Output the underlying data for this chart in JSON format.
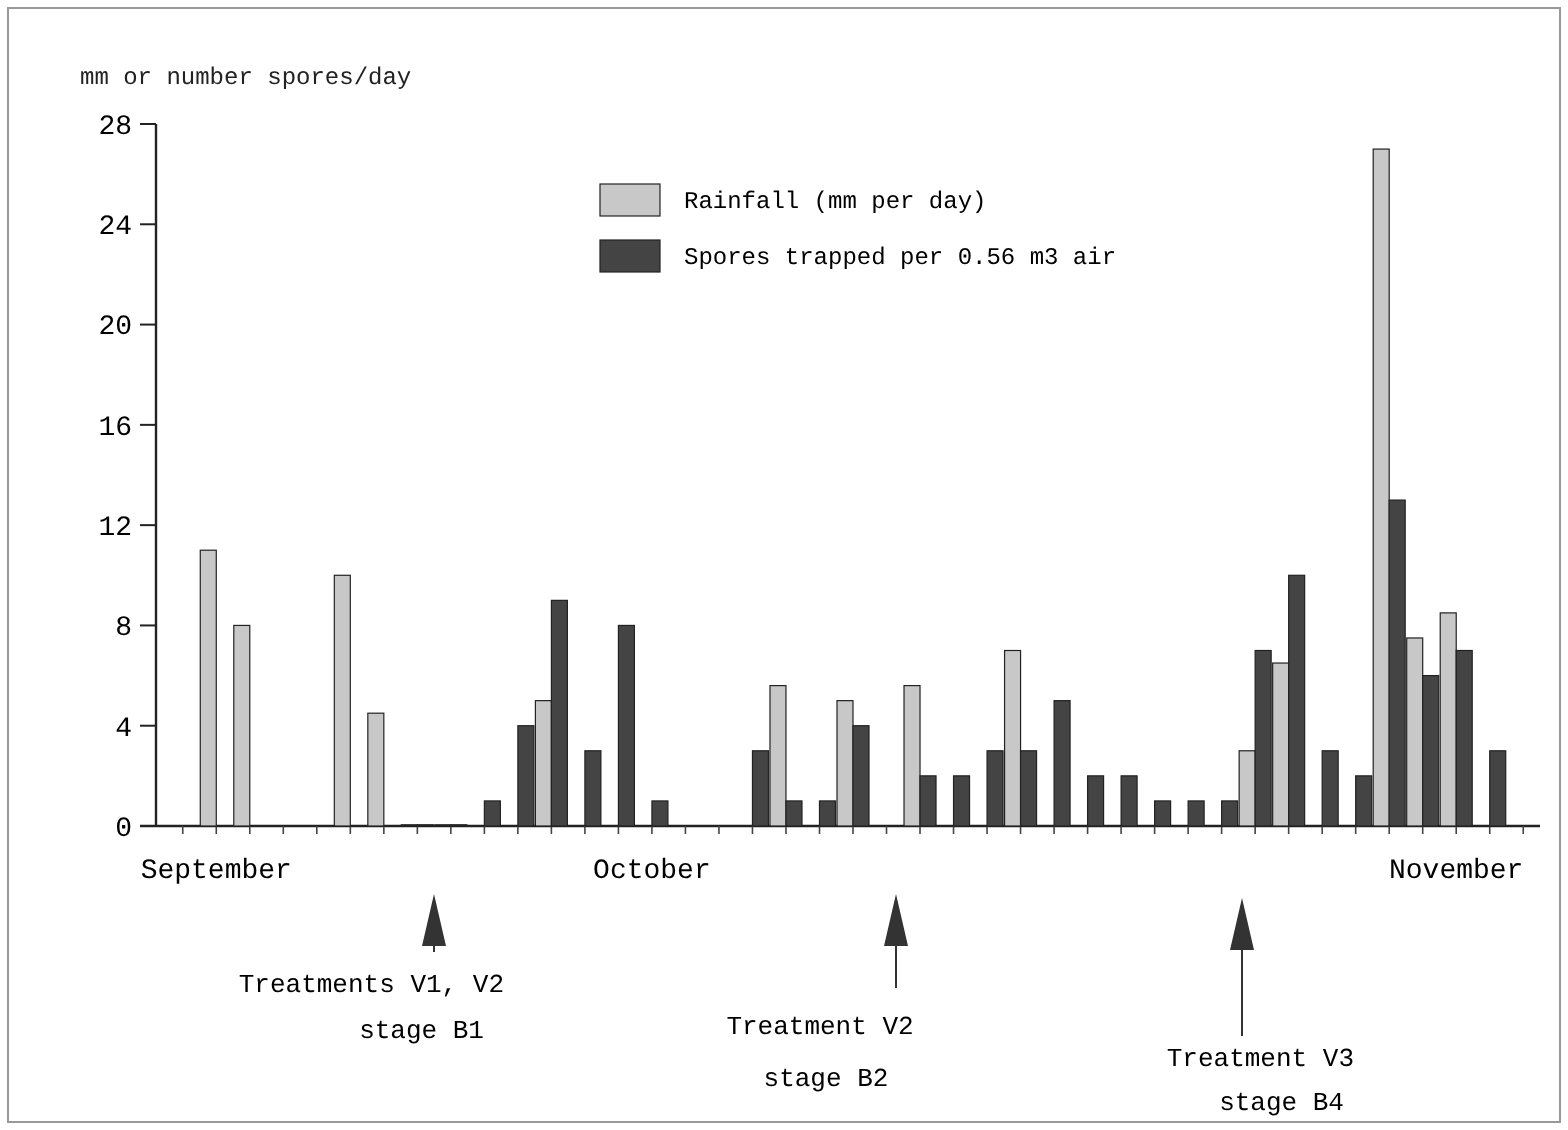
{
  "chart_data": {
    "type": "bar",
    "ylabel": "mm or number spores/day",
    "categories": [
      null,
      "September",
      null,
      null,
      null,
      null,
      null,
      null,
      null,
      null,
      null,
      null,
      null,
      null,
      "October",
      null,
      null,
      null,
      null,
      null,
      null,
      null,
      null,
      null,
      null,
      null,
      null,
      null,
      null,
      null,
      null,
      null,
      null,
      null,
      null,
      null,
      null,
      null,
      "November",
      null,
      null
    ],
    "series": [
      {
        "name": "Rainfall (mm per day)",
        "color": "#c8c8c8",
        "values": [
          null,
          11,
          8,
          null,
          null,
          10,
          4.5,
          0,
          0,
          null,
          null,
          5,
          null,
          null,
          null,
          null,
          null,
          null,
          5.6,
          null,
          5,
          null,
          5.6,
          null,
          null,
          7,
          null,
          null,
          null,
          null,
          null,
          null,
          3,
          6.5,
          null,
          null,
          27,
          7.5,
          8.5,
          null,
          null
        ]
      },
      {
        "name": "Spores trapped per 0.56 m3 air",
        "color": "#444444",
        "values": [
          null,
          null,
          null,
          null,
          null,
          null,
          null,
          0,
          0,
          1,
          4,
          9,
          3,
          8,
          1,
          null,
          null,
          3,
          1,
          1,
          4,
          null,
          2,
          2,
          3,
          3,
          5,
          2,
          2,
          1,
          1,
          1,
          7,
          10,
          3,
          2,
          13,
          6,
          7,
          3,
          null
        ]
      }
    ],
    "ylim": [
      0,
      28
    ],
    "yticks": [
      0,
      4,
      8,
      12,
      16,
      20,
      24,
      28
    ],
    "grid": false,
    "legend": "top",
    "annotations": [
      "Treatments V1, V2\nstage B1",
      "Treatment V2\nstage B2",
      "Treatment V3\nstage B4"
    ]
  }
}
